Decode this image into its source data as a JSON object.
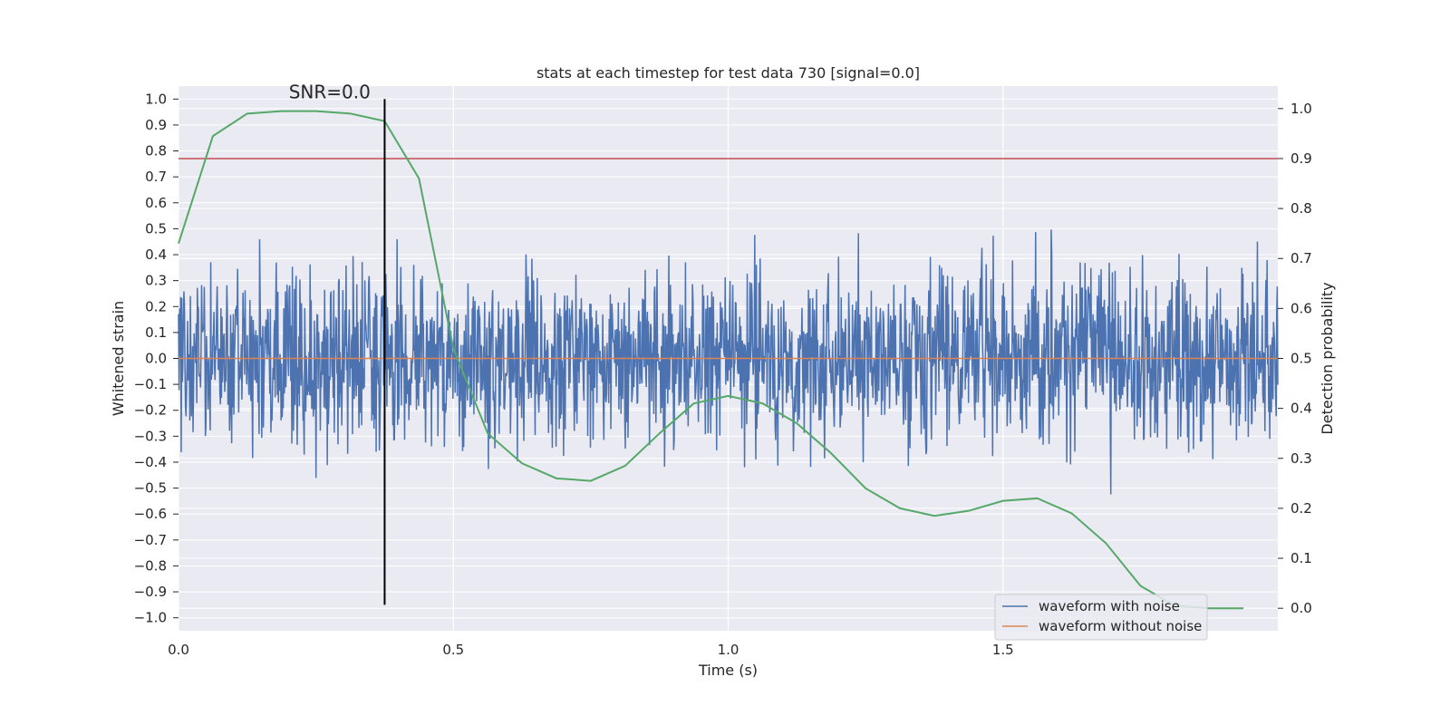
{
  "chart_data": {
    "type": "line",
    "title": "stats at each timestep for test data 730 [signal=0.0]",
    "xlabel": "Time (s)",
    "ylabel": "Whitened strain",
    "y2label": "Detection probability",
    "xlim": [
      0.0,
      2.0
    ],
    "ylim": [
      -1.05,
      1.05
    ],
    "y2lim": [
      -0.045,
      1.045
    ],
    "x_ticks": [
      0.0,
      0.5,
      1.0,
      1.5
    ],
    "x_tick_labels": [
      "0.0",
      "0.5",
      "1.0",
      "1.5"
    ],
    "y_ticks": [
      1.0,
      0.9,
      0.8,
      0.7,
      0.6,
      0.5,
      0.4,
      0.3,
      0.2,
      0.1,
      0.0,
      -0.1,
      -0.2,
      -0.3,
      -0.4,
      -0.5,
      -0.6,
      -0.7,
      -0.8,
      -0.9,
      -1.0
    ],
    "y_tick_labels": [
      "1.0",
      "0.9",
      "0.8",
      "0.7",
      "0.6",
      "0.5",
      "0.4",
      "0.3",
      "0.2",
      "0.1",
      "0.0",
      "−0.1",
      "−0.2",
      "−0.3",
      "−0.4",
      "−0.5",
      "−0.6",
      "−0.7",
      "−0.8",
      "−0.9",
      "−1.0"
    ],
    "y2_ticks": [
      1.0,
      0.9,
      0.8,
      0.7,
      0.6,
      0.5,
      0.4,
      0.3,
      0.2,
      0.1,
      0.0
    ],
    "y2_tick_labels": [
      "1.0",
      "0.9",
      "0.8",
      "0.7",
      "0.6",
      "0.5",
      "0.4",
      "0.3",
      "0.2",
      "0.1",
      "0.0"
    ],
    "grid": true,
    "legend_position": "bottom-right",
    "colors": {
      "background": "#eaeaf2",
      "grid": "#ffffff",
      "noisy": "#4c72b0",
      "clean": "#dd8452",
      "probability": "#55a868",
      "threshold": "#c44e52",
      "marker": "#000000"
    },
    "annotation": {
      "text": "SNR=0.0",
      "x": 0.275,
      "y": 1.0
    },
    "marker_line": {
      "x": 0.375,
      "y_from": -0.95,
      "y_to": 1.0
    },
    "threshold_line": {
      "y2": 0.9
    },
    "series": [
      {
        "name": "waveform with noise",
        "axis": "left",
        "generated": {
          "n": 2048,
          "x_start": 0.0,
          "x_end": 2.0,
          "scale": 0.24,
          "clip": 1.0,
          "seed": 730
        }
      },
      {
        "name": "waveform without noise",
        "axis": "left",
        "x": [
          0.0,
          2.0
        ],
        "values": [
          0.0,
          0.0
        ]
      },
      {
        "name": "detection probability",
        "axis": "right",
        "x": [
          0.0,
          0.0625,
          0.125,
          0.1875,
          0.25,
          0.3125,
          0.375,
          0.4375,
          0.5,
          0.5625,
          0.625,
          0.6875,
          0.75,
          0.8125,
          0.875,
          0.9375,
          1.0,
          1.0625,
          1.125,
          1.1875,
          1.25,
          1.3125,
          1.375,
          1.4375,
          1.5,
          1.5625,
          1.625,
          1.6875,
          1.75,
          1.8125,
          1.875,
          1.9375
        ],
        "values": [
          0.73,
          0.945,
          0.99,
          0.995,
          0.995,
          0.99,
          0.975,
          0.86,
          0.52,
          0.35,
          0.29,
          0.26,
          0.255,
          0.285,
          0.35,
          0.41,
          0.425,
          0.41,
          0.37,
          0.31,
          0.24,
          0.2,
          0.185,
          0.195,
          0.215,
          0.22,
          0.19,
          0.13,
          0.045,
          0.005,
          0.0,
          0.0
        ]
      }
    ],
    "legend": [
      "waveform with noise",
      "waveform without noise"
    ]
  }
}
